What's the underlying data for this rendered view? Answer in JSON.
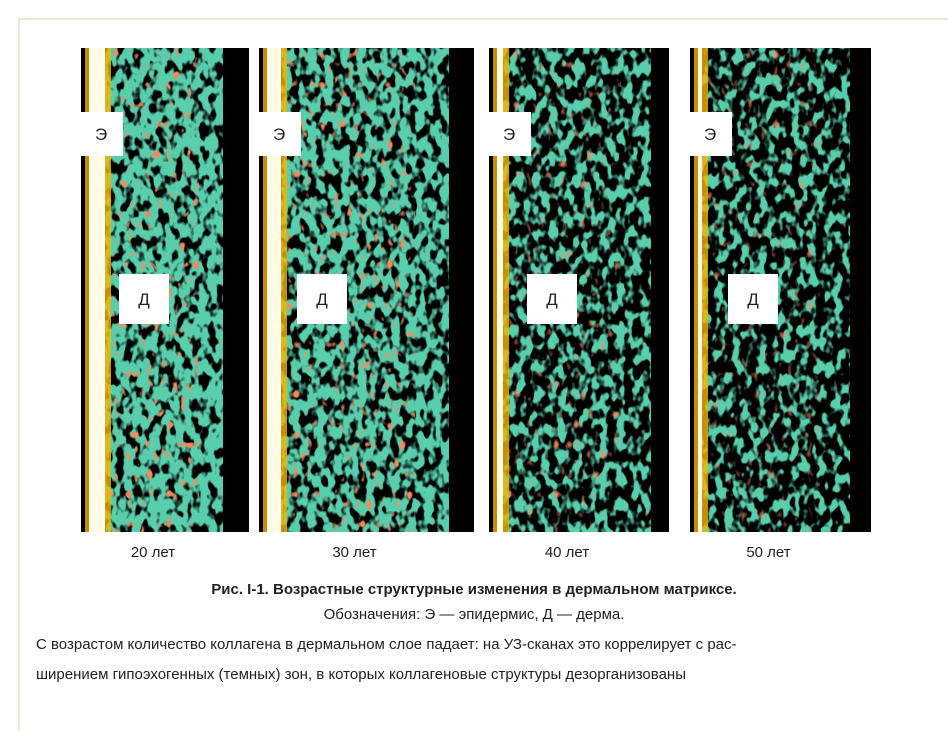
{
  "figure": {
    "panels": [
      {
        "epidermis_label": "Э",
        "dermis_label": "Д",
        "caption": "20 лет"
      },
      {
        "epidermis_label": "Э",
        "dermis_label": "Д",
        "caption": "30 лет"
      },
      {
        "epidermis_label": "Э",
        "dermis_label": "Д",
        "caption": "40 лет"
      },
      {
        "epidermis_label": "Э",
        "dermis_label": "Д",
        "caption": "50 лет"
      }
    ],
    "title_number": "Рис. I-1.",
    "title_text": "Возрастные структурные изменения в дермальном матриксе.",
    "legend": "Обозначения: Э — эпидермис, Д — дерма.",
    "description_lines": [
      "С возрастом количество коллагена в дермальном слое падает: на УЗ-сканах это коррелирует с рас-",
      "ширением гипоэхогенных (темных) зон, в которых коллагеновые структуры дезорганизованы"
    ]
  }
}
